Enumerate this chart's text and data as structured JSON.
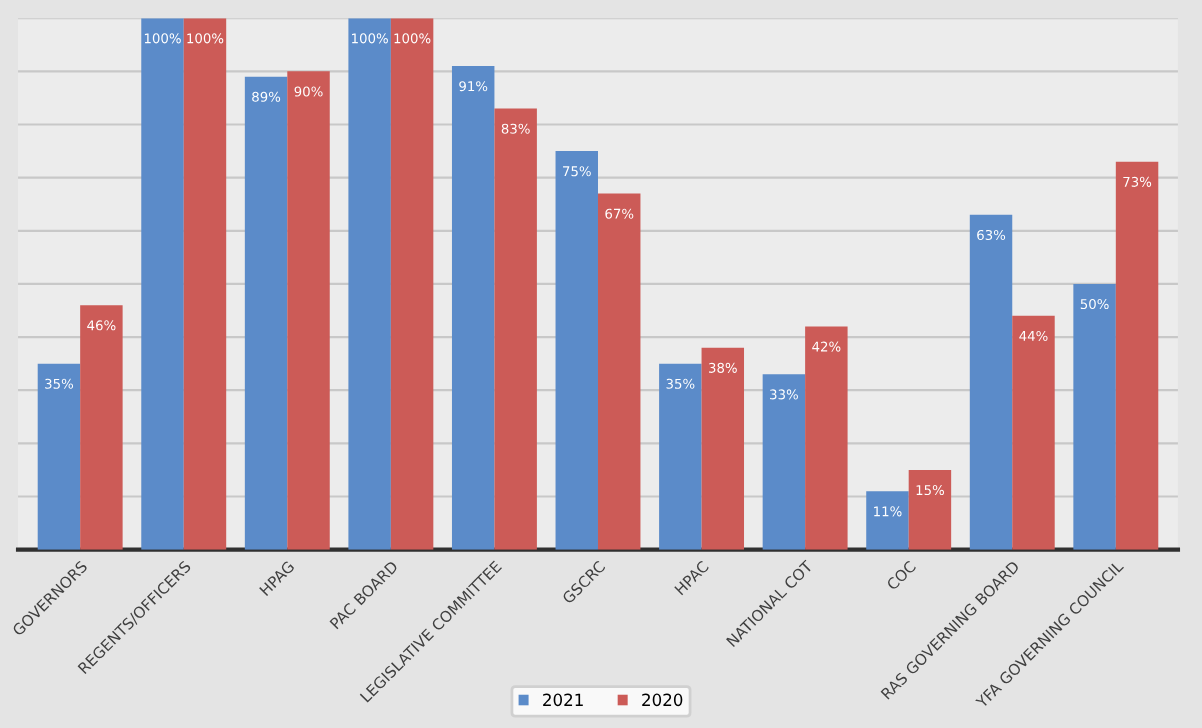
{
  "chart_data": {
    "type": "bar",
    "categories": [
      "GOVERNORS",
      "REGENTS/OFFICERS",
      "HPAG",
      "PAC BOARD",
      "LEGISLATIVE COMMITTEE",
      "GSCRC",
      "HPAC",
      "NATIONAL COT",
      "COC",
      "RAS GOVERNING BOARD",
      "YFA GOVERNING COUNCIL"
    ],
    "series": [
      {
        "name": "2021",
        "color": "#5b8bc9",
        "values": [
          35,
          100,
          89,
          100,
          91,
          75,
          35,
          33,
          11,
          63,
          50
        ],
        "value_labels": [
          "35%",
          "100%",
          "89%",
          "100%",
          "91%",
          "75%",
          "35%",
          "33%",
          "11%",
          "63%",
          "50%"
        ]
      },
      {
        "name": "2020",
        "color": "#cc5b57",
        "values": [
          46,
          100,
          90,
          100,
          83,
          67,
          38,
          42,
          15,
          44,
          73
        ],
        "value_labels": [
          "46%",
          "100%",
          "90%",
          "100%",
          "83%",
          "67%",
          "38%",
          "42%",
          "15%",
          "44%",
          "73%"
        ]
      }
    ],
    "ylim": [
      0,
      100
    ],
    "yticks": [
      {
        "value": 0,
        "label": null
      },
      {
        "value": 10,
        "label": null
      },
      {
        "value": 20,
        "label": null
      },
      {
        "value": 30,
        "label": null
      },
      {
        "value": 40,
        "label": null
      },
      {
        "value": 50,
        "label": null
      },
      {
        "value": 60,
        "label": null
      },
      {
        "value": 70,
        "label": null
      },
      {
        "value": 80,
        "label": null
      },
      {
        "value": 90,
        "label": null
      },
      {
        "value": 100,
        "label": null
      }
    ],
    "tick_labels": "x",
    "grid": "y",
    "legend": "bottom"
  }
}
